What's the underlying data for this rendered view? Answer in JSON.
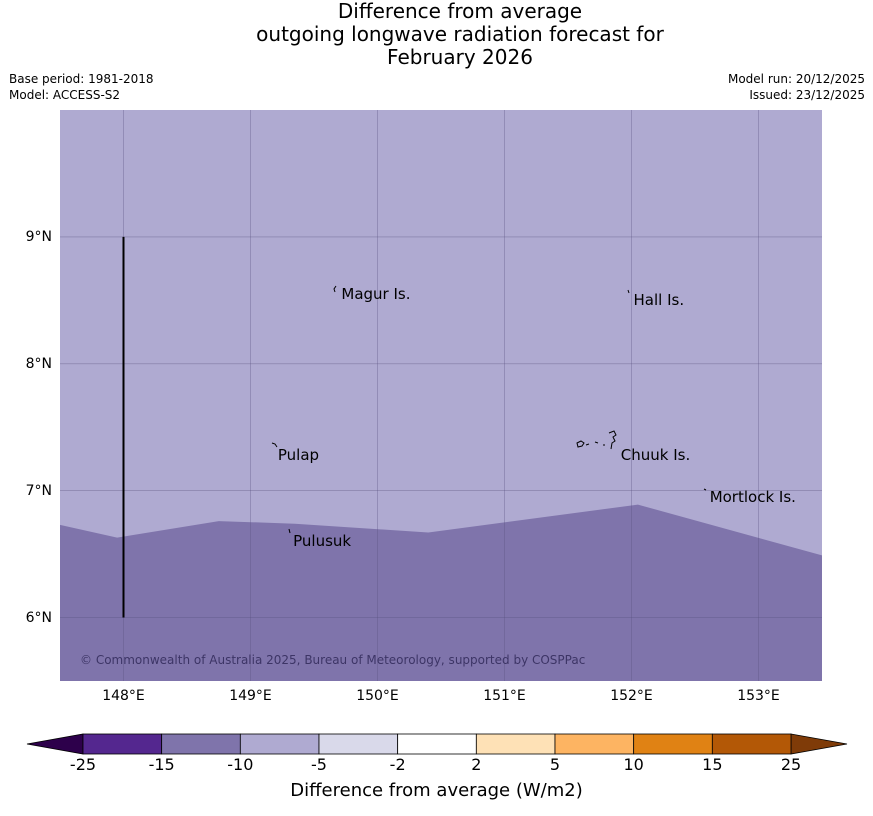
{
  "title": {
    "line1": "Difference from average",
    "line2": "outgoing longwave radiation forecast for",
    "line3": "February 2026"
  },
  "meta": {
    "base_period": "Base period: 1981-2018",
    "model": "Model: ACCESS-S2",
    "model_run": "Model run: 20/12/2025",
    "issued": "Issued: 23/12/2025"
  },
  "map": {
    "lon_range": [
      147.5,
      153.5
    ],
    "lat_range": [
      5.5,
      10.0
    ],
    "x_ticks": [
      "148°E",
      "149°E",
      "150°E",
      "151°E",
      "152°E",
      "153°E"
    ],
    "y_ticks": [
      "6°N",
      "7°N",
      "8°N",
      "9°N"
    ],
    "x_tick_values": [
      148,
      149,
      150,
      151,
      152,
      153
    ],
    "y_tick_values": [
      6,
      7,
      8,
      9
    ],
    "places": [
      {
        "name": "Magur Is.",
        "lon": 149.7,
        "lat": 8.55
      },
      {
        "name": "Hall Is.",
        "lon": 152.0,
        "lat": 8.5
      },
      {
        "name": "Pulap",
        "lon": 149.2,
        "lat": 7.28
      },
      {
        "name": "Chuuk Is.",
        "lon": 151.9,
        "lat": 7.28
      },
      {
        "name": "Mortlock Is.",
        "lon": 152.6,
        "lat": 6.95
      },
      {
        "name": "Pulusuk",
        "lon": 149.32,
        "lat": 6.6
      }
    ],
    "boundary_line": {
      "lon": 148.0,
      "lat_from": 6.0,
      "lat_to": 9.0
    },
    "regions": {
      "upper": {
        "category": "-10 to -5",
        "color": "#afaad1"
      },
      "lower": {
        "category": "-15 to -10",
        "color": "#7f74ab"
      }
    },
    "region_boundary": [
      {
        "lon": 147.5,
        "lat": 6.73
      },
      {
        "lon": 147.95,
        "lat": 6.63
      },
      {
        "lon": 148.75,
        "lat": 6.76
      },
      {
        "lon": 149.35,
        "lat": 6.74
      },
      {
        "lon": 150.4,
        "lat": 6.67
      },
      {
        "lon": 152.05,
        "lat": 6.89
      },
      {
        "lon": 153.5,
        "lat": 6.49
      }
    ],
    "copyright": "© Commonwealth of Australia 2025, Bureau of Meteorology, supported by COSPPac"
  },
  "colorbar": {
    "title": "Difference from average (W/m2)",
    "labels": [
      "-25",
      "-15",
      "-10",
      "-5",
      "-2",
      "2",
      "5",
      "10",
      "15",
      "25"
    ],
    "colors": [
      "#54278f",
      "#7f74ab",
      "#afaad1",
      "#d9d9ea",
      "#ffffff",
      "#fee1b6",
      "#fdb462",
      "#e08214",
      "#b35806"
    ],
    "under_color": "#2d004b",
    "over_color": "#7f3b08"
  }
}
